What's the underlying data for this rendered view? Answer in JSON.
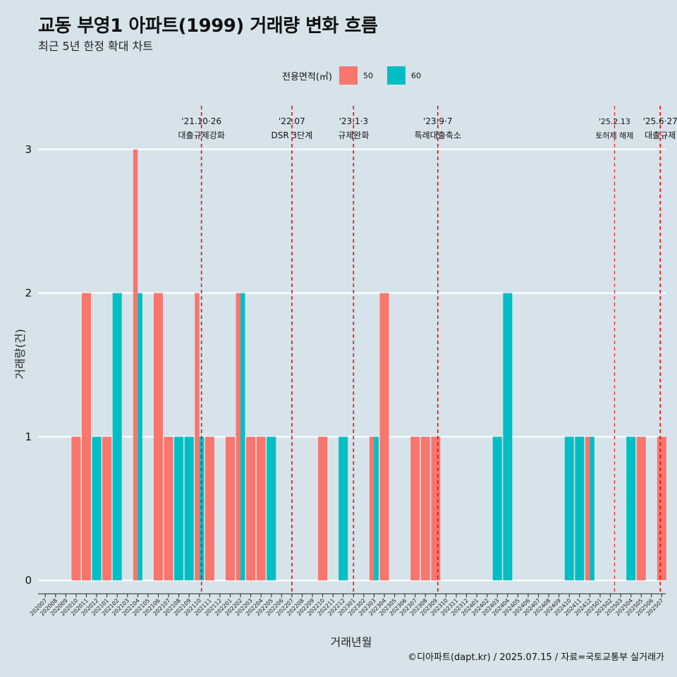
{
  "title": "교동 부영1 아파트(1999) 거래량 변화 흐름",
  "subtitle": "최근 5년 한정 확대 차트",
  "caption": "©디아파트(dapt.kr) / 2025.07.15 / 자료=국토교통부 실거래가",
  "legend": {
    "title": "전용면적(㎡)",
    "items": [
      {
        "label": "50",
        "color": "#f8766d"
      },
      {
        "label": "60",
        "color": "#00bfc4"
      }
    ]
  },
  "chart_data": {
    "type": "bar",
    "xlabel": "거래년월",
    "ylabel": "거래량(건)",
    "ylim": [
      0,
      3
    ],
    "yticks": [
      0,
      1,
      2,
      3
    ],
    "grid": "horizontal",
    "legend_position": "top",
    "bar_mode": "dodge",
    "categories": [
      "202007",
      "202008",
      "202009",
      "202010",
      "202011",
      "202012",
      "202101",
      "202102",
      "202103",
      "202104",
      "202105",
      "202106",
      "202107",
      "202108",
      "202109",
      "202110",
      "202111",
      "202112",
      "202201",
      "202202",
      "202203",
      "202204",
      "202205",
      "202206",
      "202207",
      "202208",
      "202209",
      "202210",
      "202211",
      "202212",
      "202301",
      "202302",
      "202303",
      "202304",
      "202305",
      "202306",
      "202307",
      "202308",
      "202309",
      "202310",
      "202311",
      "202312",
      "202401",
      "202402",
      "202403",
      "202404",
      "202405",
      "202406",
      "202407",
      "202408",
      "202409",
      "202410",
      "202411",
      "202412",
      "202501",
      "202502",
      "202503",
      "202504",
      "202505",
      "202506",
      "202507"
    ],
    "series": [
      {
        "name": "50",
        "color": "#f8766d",
        "values": [
          0,
          0,
          0,
          1,
          2,
          0,
          1,
          0,
          0,
          3,
          0,
          2,
          1,
          0,
          0,
          2,
          1,
          0,
          1,
          2,
          1,
          1,
          0,
          0,
          0,
          0,
          0,
          1,
          0,
          0,
          0,
          0,
          1,
          2,
          0,
          0,
          1,
          1,
          1,
          0,
          0,
          0,
          0,
          0,
          0,
          0,
          0,
          0,
          0,
          0,
          0,
          0,
          0,
          1,
          0,
          0,
          0,
          0,
          1,
          0,
          1
        ]
      },
      {
        "name": "60",
        "color": "#00bfc4",
        "values": [
          0,
          0,
          0,
          0,
          0,
          1,
          0,
          2,
          0,
          2,
          0,
          0,
          0,
          1,
          1,
          1,
          0,
          0,
          0,
          2,
          0,
          0,
          1,
          0,
          0,
          0,
          0,
          0,
          0,
          1,
          0,
          0,
          1,
          0,
          0,
          0,
          0,
          0,
          0,
          0,
          0,
          0,
          0,
          0,
          1,
          2,
          0,
          0,
          0,
          0,
          0,
          1,
          1,
          1,
          0,
          0,
          0,
          1,
          0,
          0,
          0
        ]
      }
    ],
    "annotations": [
      {
        "date": "'21.10·26",
        "label": "대출규제강화",
        "category": "202110",
        "offset": 0.2
      },
      {
        "date": "'22.07",
        "label": "DSR 3단계",
        "category": "202207",
        "offset": 0.0
      },
      {
        "date": "'23.1·3",
        "label": "규제완화",
        "category": "202301",
        "offset": 0.0
      },
      {
        "date": "'23.9·7",
        "label": "특례대출축소",
        "category": "202309",
        "offset": 0.2
      },
      {
        "date": "'25.2.13",
        "label": "토허제 해제",
        "category": "202502",
        "offset": 0.4
      },
      {
        "date": "'25.6·27",
        "label": "대출규제",
        "category": "202506",
        "offset": 0.85
      }
    ],
    "annotation_color": "#ff0000"
  }
}
